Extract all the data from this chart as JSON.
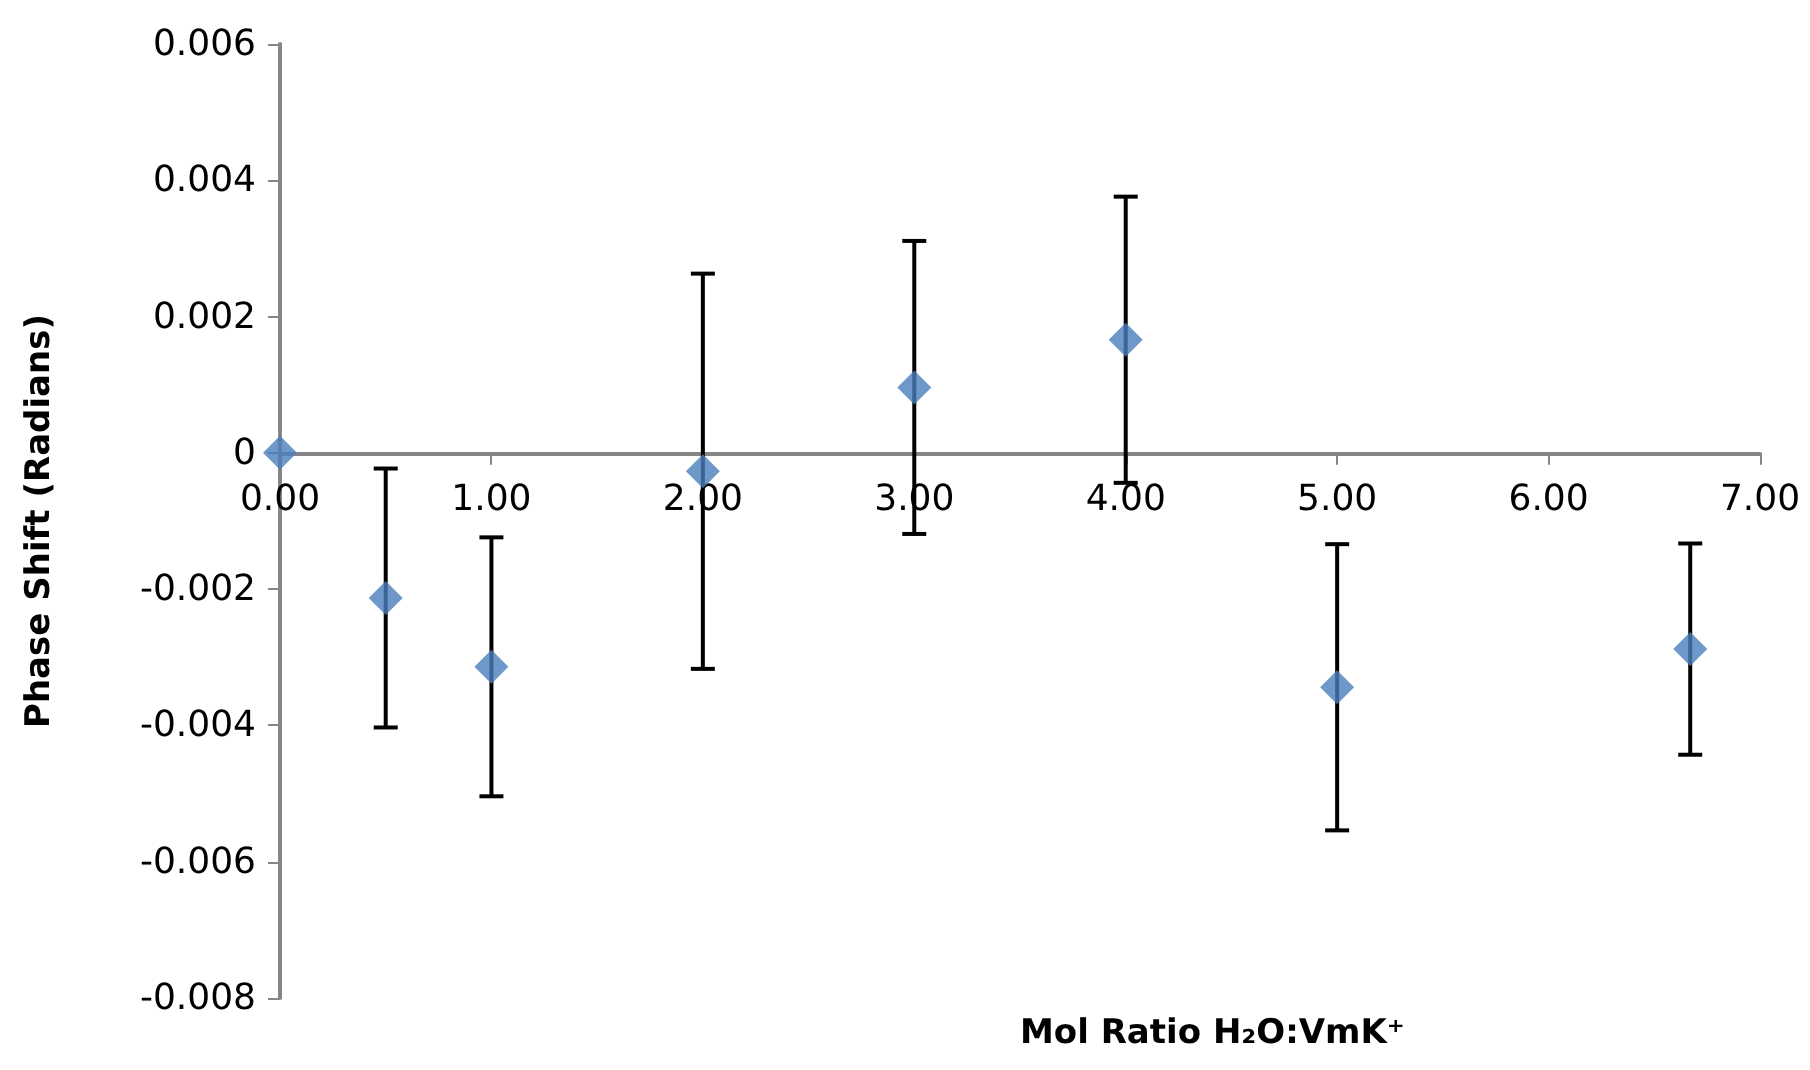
{
  "chart_data": {
    "type": "scatter",
    "xlabel": "Mol Ratio H₂O:VmK⁺",
    "ylabel": "Phase Shift (Radians)",
    "x": [
      0,
      0.5,
      1,
      2,
      3,
      4,
      5,
      6.67
    ],
    "series": [
      {
        "color": "#4a7ebb",
        "values": [
          0,
          -0.00213,
          -0.00314,
          -0.00027,
          0.00096,
          0.00166,
          -0.00344,
          -0.00288
        ],
        "errors": [
          null,
          0.0019,
          0.0019,
          0.0029,
          0.00215,
          0.0021,
          0.0021,
          0.00155
        ]
      }
    ],
    "xlim": [
      0,
      7
    ],
    "xticks": [
      {
        "value": 0,
        "label": "0.00"
      },
      {
        "value": 1,
        "label": "1.00"
      },
      {
        "value": 2,
        "label": "2.00"
      },
      {
        "value": 3,
        "label": "3.00"
      },
      {
        "value": 4,
        "label": "4.00"
      },
      {
        "value": 5,
        "label": "5.00"
      },
      {
        "value": 6,
        "label": "6.00"
      },
      {
        "value": 7,
        "label": "7.00"
      }
    ],
    "ylim": [
      -0.008,
      0.006
    ],
    "yticks": [
      -0.008,
      -0.006,
      -0.004,
      -0.002,
      0,
      0.002,
      0.004,
      0.006
    ],
    "marker": "diamond"
  }
}
